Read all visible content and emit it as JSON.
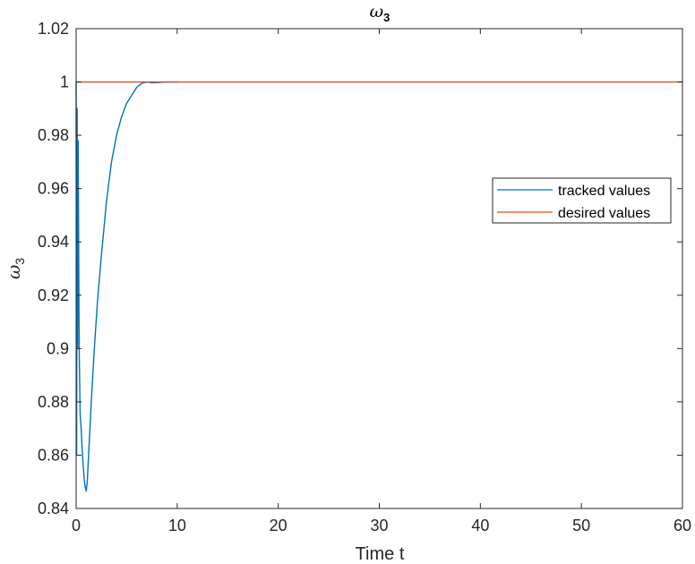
{
  "chart_data": {
    "type": "line",
    "title": {
      "symbol": "ω",
      "subscript": "3"
    },
    "xlabel": "Time t",
    "ylabel": {
      "symbol": "ω",
      "subscript": "3"
    },
    "xlim": [
      0,
      60
    ],
    "ylim": [
      0.84,
      1.02
    ],
    "xticks": [
      0,
      10,
      20,
      30,
      40,
      50,
      60
    ],
    "yticks": [
      0.84,
      0.86,
      0.88,
      0.9,
      0.92,
      0.94,
      0.96,
      0.98,
      1,
      1.02
    ],
    "xtick_labels": [
      "0",
      "10",
      "20",
      "30",
      "40",
      "50",
      "60"
    ],
    "ytick_labels": [
      "0.84",
      "0.86",
      "0.88",
      "0.9",
      "0.92",
      "0.94",
      "0.96",
      "0.98",
      "1",
      "1.02"
    ],
    "grid": false,
    "legend": "right",
    "series": [
      {
        "name": "tracked values",
        "color": "#0072BD",
        "x": [
          0,
          0.05,
          0.1,
          0.15,
          0.2,
          0.3,
          0.4,
          0.5,
          0.6,
          0.7,
          0.8,
          0.9,
          1.0,
          1.1,
          1.3,
          1.5,
          1.8,
          2.1,
          2.5,
          3.0,
          3.5,
          4.0,
          4.5,
          5.0,
          5.5,
          6.0,
          6.5,
          7.0,
          7.5,
          8.0,
          9.0,
          10.0
        ],
        "y": [
          1.0,
          0.86,
          0.99,
          0.9,
          0.978,
          0.9,
          0.875,
          0.87,
          0.862,
          0.856,
          0.851,
          0.848,
          0.8465,
          0.85,
          0.865,
          0.88,
          0.9,
          0.917,
          0.935,
          0.955,
          0.97,
          0.98,
          0.987,
          0.992,
          0.995,
          0.998,
          0.9995,
          1.0,
          0.9997,
          0.9998,
          1.0,
          1.0
        ]
      },
      {
        "name": "desired values",
        "color": "#D95319",
        "x": [
          0,
          60
        ],
        "y": [
          1,
          1
        ]
      }
    ]
  }
}
